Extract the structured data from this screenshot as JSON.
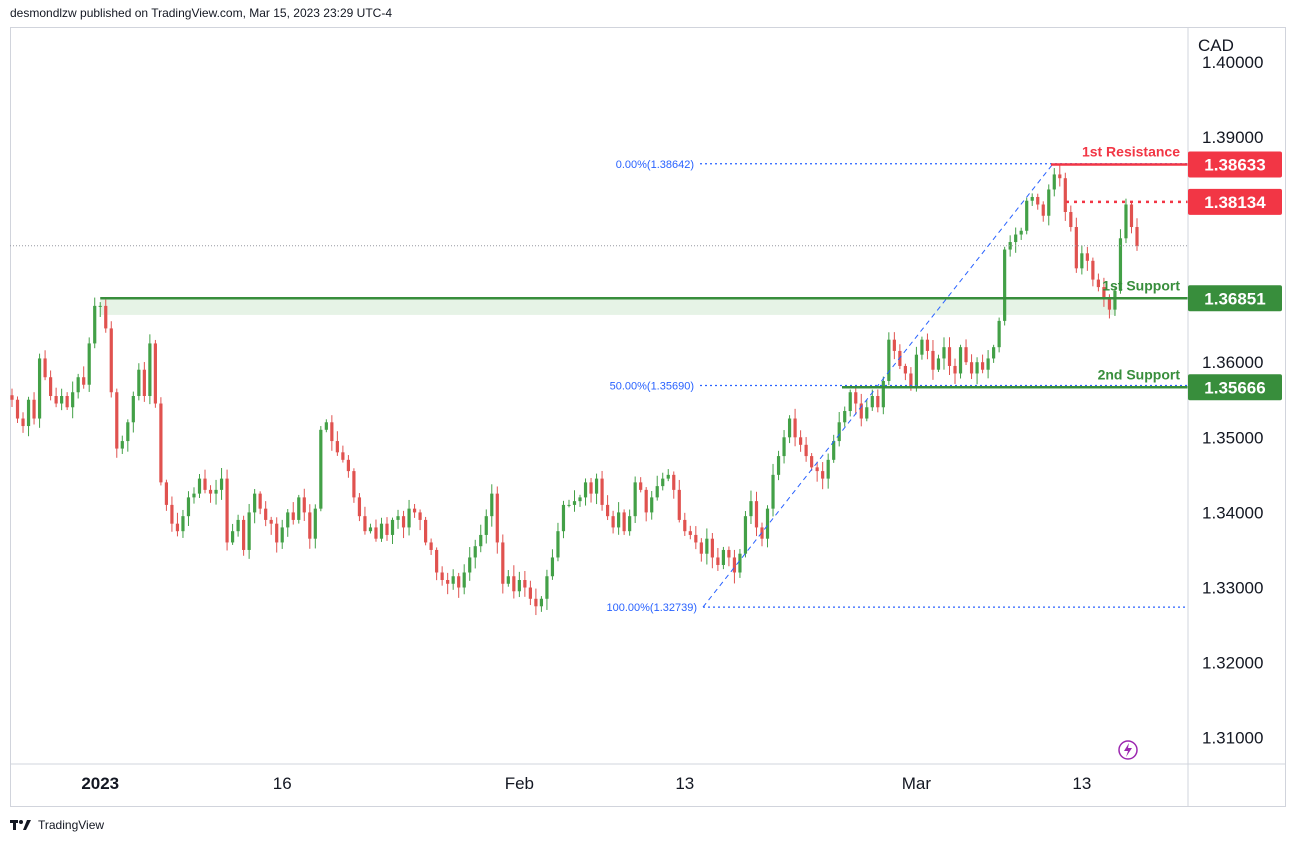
{
  "header": {
    "published_by": "desmondlzw published on TradingView.com, Mar 15, 2023 23:29 UTC-4"
  },
  "footer": {
    "brand": "TradingView"
  },
  "colors": {
    "up": "#43a047",
    "down": "#e0524f",
    "resistance": "#f23645",
    "support": "#388e3c",
    "fib": "#2962ff",
    "zone": "#e6f3e6",
    "grid_text": "#131722",
    "flash": "#9c27b0"
  },
  "chart_data": {
    "type": "candlestick",
    "symbol_axis_label": "CAD",
    "ylim": [
      1.3065,
      1.4045
    ],
    "yticks": [
      "1.40000",
      "1.39000",
      "1.36000",
      "1.35000",
      "1.34000",
      "1.33000",
      "1.32000",
      "1.31000"
    ],
    "ytick_values": [
      1.4,
      1.39,
      1.36,
      1.35,
      1.34,
      1.33,
      1.32,
      1.31
    ],
    "xticks": [
      "2023",
      "16",
      "Feb",
      "13",
      "Mar",
      "13"
    ],
    "xtick_index": [
      16,
      49,
      92,
      122,
      164,
      194
    ],
    "last_price": 1.3755,
    "price_labels": [
      {
        "text": "1.38633",
        "value": 1.38633,
        "kind": "resistance"
      },
      {
        "text": "1.38134",
        "value": 1.38134,
        "kind": "resistance"
      },
      {
        "text": "1.36851",
        "value": 1.36851,
        "kind": "support"
      },
      {
        "text": "1.35666",
        "value": 1.35666,
        "kind": "support"
      }
    ],
    "level_labels": {
      "resistance_1": "1st Resistance",
      "support_1": "1st Support",
      "support_2": "2nd Support"
    },
    "fib_labels": [
      {
        "text": "0.00%(1.38642)",
        "value": 1.38642
      },
      {
        "text": "50.00%(1.35690)",
        "value": 1.3569
      },
      {
        "text": "100.00%(1.32739)",
        "value": 1.32739
      }
    ],
    "support_zone": [
      1.3663,
      1.36851
    ],
    "closes": [
      1.355,
      1.3525,
      1.3515,
      1.355,
      1.3525,
      1.3605,
      1.358,
      1.3555,
      1.3545,
      1.3555,
      1.354,
      1.356,
      1.358,
      1.357,
      1.3625,
      1.3675,
      1.3675,
      1.3645,
      1.356,
      1.3485,
      1.3495,
      1.352,
      1.3555,
      1.359,
      1.3555,
      1.3625,
      1.3545,
      1.344,
      1.341,
      1.3385,
      1.3375,
      1.3395,
      1.342,
      1.3425,
      1.3445,
      1.343,
      1.3425,
      1.343,
      1.3445,
      1.336,
      1.3375,
      1.339,
      1.335,
      1.34,
      1.3425,
      1.3405,
      1.339,
      1.3385,
      1.336,
      1.338,
      1.34,
      1.339,
      1.342,
      1.34,
      1.3365,
      1.3405,
      1.351,
      1.352,
      1.3495,
      1.348,
      1.347,
      1.3455,
      1.342,
      1.3395,
      1.3375,
      1.338,
      1.3365,
      1.3385,
      1.337,
      1.339,
      1.3395,
      1.338,
      1.3405,
      1.34,
      1.339,
      1.336,
      1.335,
      1.332,
      1.331,
      1.3305,
      1.3315,
      1.33,
      1.332,
      1.334,
      1.3355,
      1.337,
      1.3395,
      1.3425,
      1.336,
      1.3305,
      1.3315,
      1.3295,
      1.331,
      1.33,
      1.3285,
      1.3275,
      1.3285,
      1.3315,
      1.334,
      1.3375,
      1.341,
      1.341,
      1.3415,
      1.342,
      1.344,
      1.3425,
      1.3445,
      1.341,
      1.3395,
      1.338,
      1.34,
      1.3375,
      1.3395,
      1.344,
      1.343,
      1.34,
      1.342,
      1.3435,
      1.3445,
      1.345,
      1.343,
      1.339,
      1.3375,
      1.337,
      1.336,
      1.3345,
      1.3365,
      1.334,
      1.333,
      1.335,
      1.334,
      1.332,
      1.3345,
      1.3395,
      1.3415,
      1.338,
      1.3365,
      1.3405,
      1.345,
      1.3475,
      1.35,
      1.3525,
      1.35,
      1.349,
      1.3475,
      1.346,
      1.3455,
      1.3445,
      1.347,
      1.3495,
      1.352,
      1.3535,
      1.356,
      1.3545,
      1.3525,
      1.354,
      1.3555,
      1.354,
      1.3575,
      1.363,
      1.3615,
      1.3595,
      1.3585,
      1.3565,
      1.361,
      1.363,
      1.3615,
      1.359,
      1.3605,
      1.362,
      1.3595,
      1.3585,
      1.362,
      1.36,
      1.3585,
      1.36,
      1.359,
      1.3605,
      1.362,
      1.3655,
      1.375,
      1.376,
      1.377,
      1.3775,
      1.3815,
      1.382,
      1.381,
      1.3795,
      1.383,
      1.385,
      1.3845,
      1.38,
      1.378,
      1.3725,
      1.3745,
      1.3735,
      1.371,
      1.37,
      1.3685,
      1.367,
      1.3695,
      1.3765,
      1.381,
      1.378,
      1.3755
    ]
  }
}
